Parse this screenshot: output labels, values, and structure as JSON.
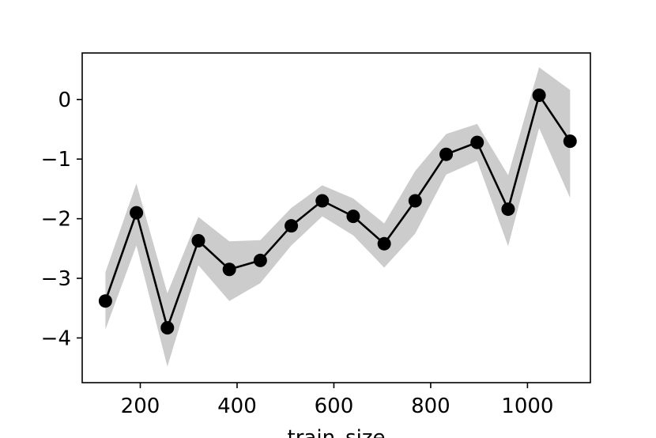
{
  "chart_data": {
    "type": "line",
    "title": "",
    "xlabel": "train_size",
    "ylabel": "",
    "xlim": [
      80,
      1130
    ],
    "ylim": [
      -4.75,
      0.78
    ],
    "x_ticks": [
      200,
      400,
      600,
      800,
      1000
    ],
    "x_tick_labels": [
      "200",
      "400",
      "600",
      "800",
      "1000"
    ],
    "y_ticks": [
      0,
      -1,
      -2,
      -3,
      -4
    ],
    "y_tick_labels": [
      "0",
      "−1",
      "−2",
      "−3",
      "−4"
    ],
    "grid": false,
    "series": [
      {
        "color": "#000000",
        "band_color": "#cccccc",
        "marker": "circle",
        "x": [
          128,
          192,
          256,
          320,
          384,
          448,
          512,
          576,
          640,
          704,
          768,
          832,
          896,
          960,
          1024,
          1088
        ],
        "values": [
          -3.38,
          -1.9,
          -3.83,
          -2.37,
          -2.85,
          -2.7,
          -2.12,
          -1.7,
          -1.96,
          -2.42,
          -1.7,
          -0.92,
          -0.72,
          -1.84,
          0.07,
          -0.7
        ],
        "lower": [
          -3.86,
          -2.45,
          -4.48,
          -2.78,
          -3.38,
          -3.08,
          -2.45,
          -1.96,
          -2.28,
          -2.82,
          -2.25,
          -1.26,
          -1.03,
          -2.46,
          -0.48,
          -1.65
        ],
        "upper": [
          -2.9,
          -1.41,
          -3.25,
          -1.97,
          -2.38,
          -2.36,
          -1.82,
          -1.44,
          -1.66,
          -2.08,
          -1.2,
          -0.58,
          -0.41,
          -1.27,
          0.54,
          0.16
        ]
      }
    ]
  }
}
